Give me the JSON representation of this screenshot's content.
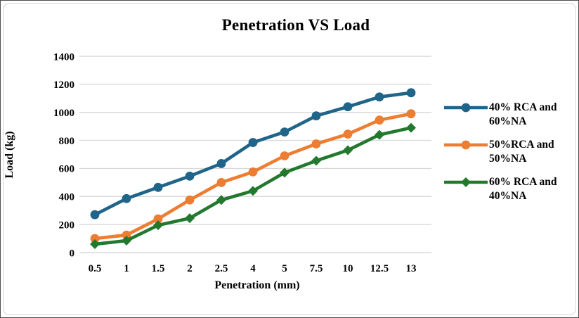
{
  "chart_data": {
    "type": "line",
    "title": "Penetration VS Load",
    "xlabel": "Penetration (mm)",
    "ylabel": "Load (kg)",
    "categories": [
      "0.5",
      "1",
      "1.5",
      "2",
      "2.5",
      "4",
      "5",
      "7.5",
      "10",
      "12.5",
      "13"
    ],
    "y_ticks": [
      0,
      200,
      400,
      600,
      800,
      1000,
      1200,
      1400
    ],
    "ylim": [
      0,
      1400
    ],
    "grid": "horizontal",
    "legend_position": "right",
    "series": [
      {
        "name": "40% RCA and 60%NA",
        "legend_lines": [
          "40% RCA and",
          "60%NA"
        ],
        "color": "#1F6489",
        "marker": "circle",
        "values": [
          270,
          385,
          465,
          545,
          635,
          785,
          860,
          975,
          1040,
          1110,
          1140
        ]
      },
      {
        "name": "50%RCA and 50%NA",
        "legend_lines": [
          "50%RCA and",
          "50%NA"
        ],
        "color": "#ED7D31",
        "marker": "circle",
        "values": [
          100,
          125,
          240,
          375,
          500,
          575,
          690,
          775,
          845,
          945,
          990
        ]
      },
      {
        "name": "60% RCA and 40%NA",
        "legend_lines": [
          "60% RCA and",
          "40%NA"
        ],
        "color": "#22792E",
        "marker": "diamond",
        "values": [
          60,
          85,
          195,
          245,
          375,
          440,
          570,
          655,
          730,
          840,
          890
        ]
      }
    ]
  },
  "colors": {
    "gridline": "#D9D9D9",
    "text": "#000000",
    "frame_border": "#D6D6D6",
    "outer_border": "#4D4D4D"
  }
}
